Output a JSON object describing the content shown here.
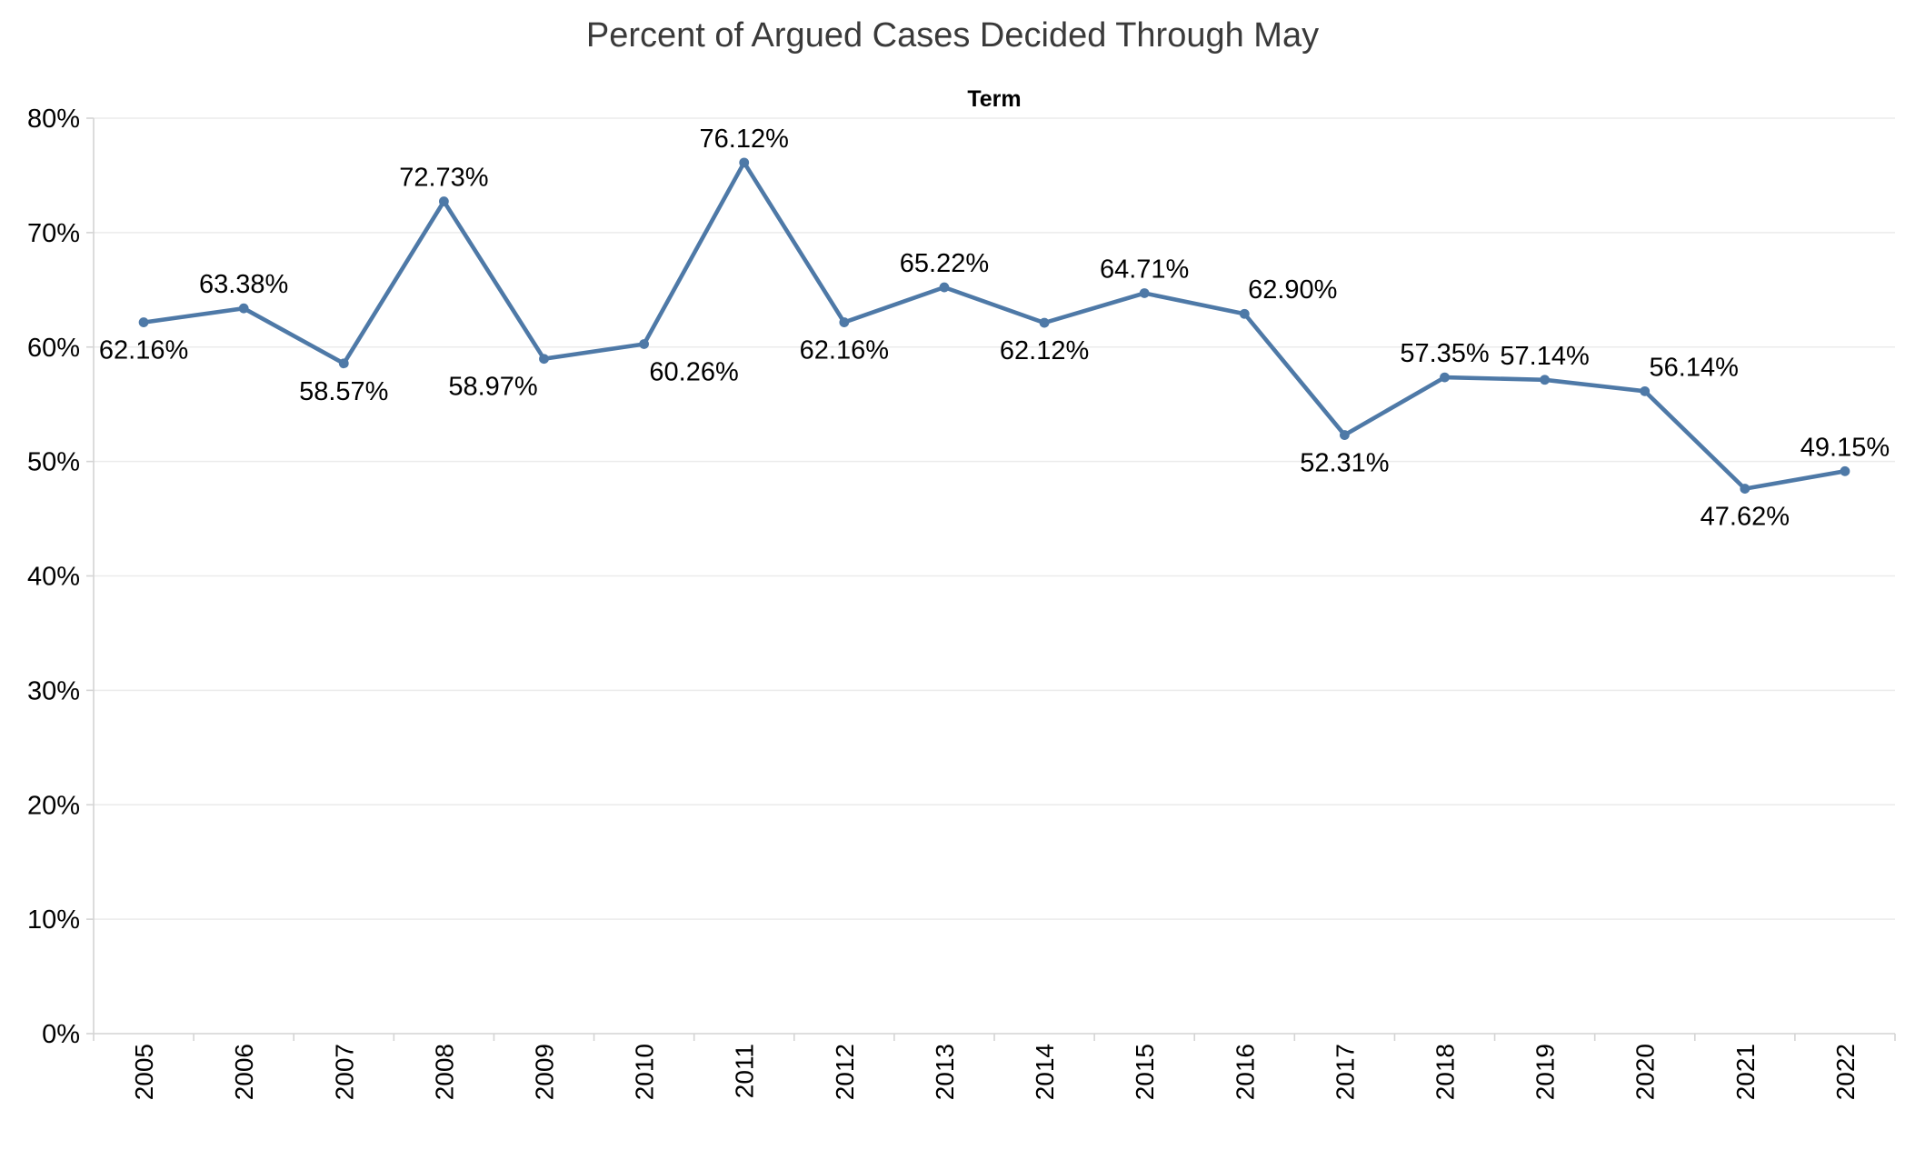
{
  "chart_data": {
    "type": "line",
    "title": "Percent of Argued Cases Decided Through May",
    "x_axis_title": "Term",
    "categories": [
      "2005",
      "2006",
      "2007",
      "2008",
      "2009",
      "2010",
      "2011",
      "2012",
      "2013",
      "2014",
      "2015",
      "2016",
      "2017",
      "2018",
      "2019",
      "2020",
      "2021",
      "2022"
    ],
    "series": [
      {
        "name": "Percent of argued cases decided through May",
        "values": [
          62.16,
          63.38,
          58.57,
          72.73,
          58.97,
          60.26,
          76.12,
          62.16,
          65.22,
          62.12,
          64.71,
          62.9,
          52.31,
          57.35,
          57.14,
          56.14,
          47.62,
          49.15
        ]
      }
    ],
    "data_labels": [
      "62.16%",
      "63.38%",
      "58.57%",
      "72.73%",
      "58.97%",
      "60.26%",
      "76.12%",
      "62.16%",
      "65.22%",
      "62.12%",
      "64.71%",
      "62.90%",
      "52.31%",
      "57.35%",
      "57.14%",
      "56.14%",
      "47.62%",
      "49.15%"
    ],
    "label_placement": [
      {
        "pos": "below",
        "dx": 0
      },
      {
        "pos": "above",
        "dx": 0
      },
      {
        "pos": "below",
        "dx": 0
      },
      {
        "pos": "above",
        "dx": 0
      },
      {
        "pos": "below",
        "dx": -56
      },
      {
        "pos": "below",
        "dx": 55
      },
      {
        "pos": "above",
        "dx": 0
      },
      {
        "pos": "below",
        "dx": 0
      },
      {
        "pos": "above",
        "dx": 0
      },
      {
        "pos": "below",
        "dx": 0
      },
      {
        "pos": "above",
        "dx": 0
      },
      {
        "pos": "above",
        "dx": 53
      },
      {
        "pos": "below",
        "dx": 0
      },
      {
        "pos": "above",
        "dx": 0
      },
      {
        "pos": "above",
        "dx": 0
      },
      {
        "pos": "above",
        "dx": 54
      },
      {
        "pos": "below",
        "dx": 0
      },
      {
        "pos": "above",
        "dx": 0
      }
    ],
    "ylim": [
      0,
      80
    ],
    "ytick_step": 10,
    "ytick_labels": [
      "0%",
      "10%",
      "20%",
      "30%",
      "40%",
      "50%",
      "60%",
      "70%",
      "80%"
    ],
    "grid": true,
    "legend": "none",
    "colors": {
      "line": "#4e79a7",
      "marker": "#4e79a7",
      "grid": "#ebebeb",
      "axis": "#d4d4d4",
      "tick": "#d4d4d4",
      "label_text": "#000000",
      "tick_text": "#000000",
      "title_text": "#3a3a3a"
    }
  }
}
